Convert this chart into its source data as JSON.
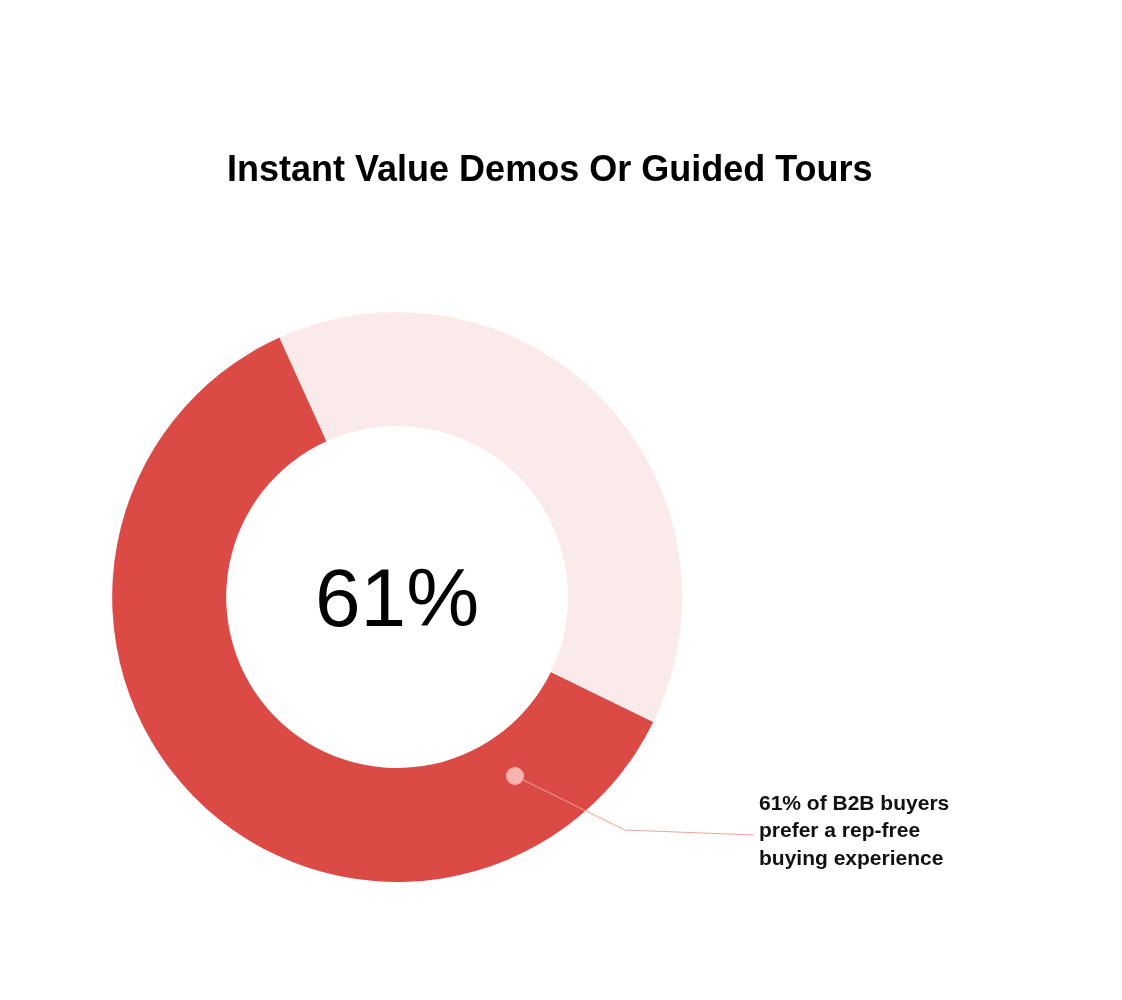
{
  "chart_data": {
    "type": "donut",
    "title": "Instant Value Demos Or Guided Tours",
    "categories": [
      null,
      null
    ],
    "values": [
      61,
      39
    ],
    "colors": [
      "#dc4a45",
      "#fbeaea"
    ],
    "annotations": [
      "61%",
      "61% of B2B buyers prefer a rep-free buying experience"
    ],
    "legend": false
  }
}
